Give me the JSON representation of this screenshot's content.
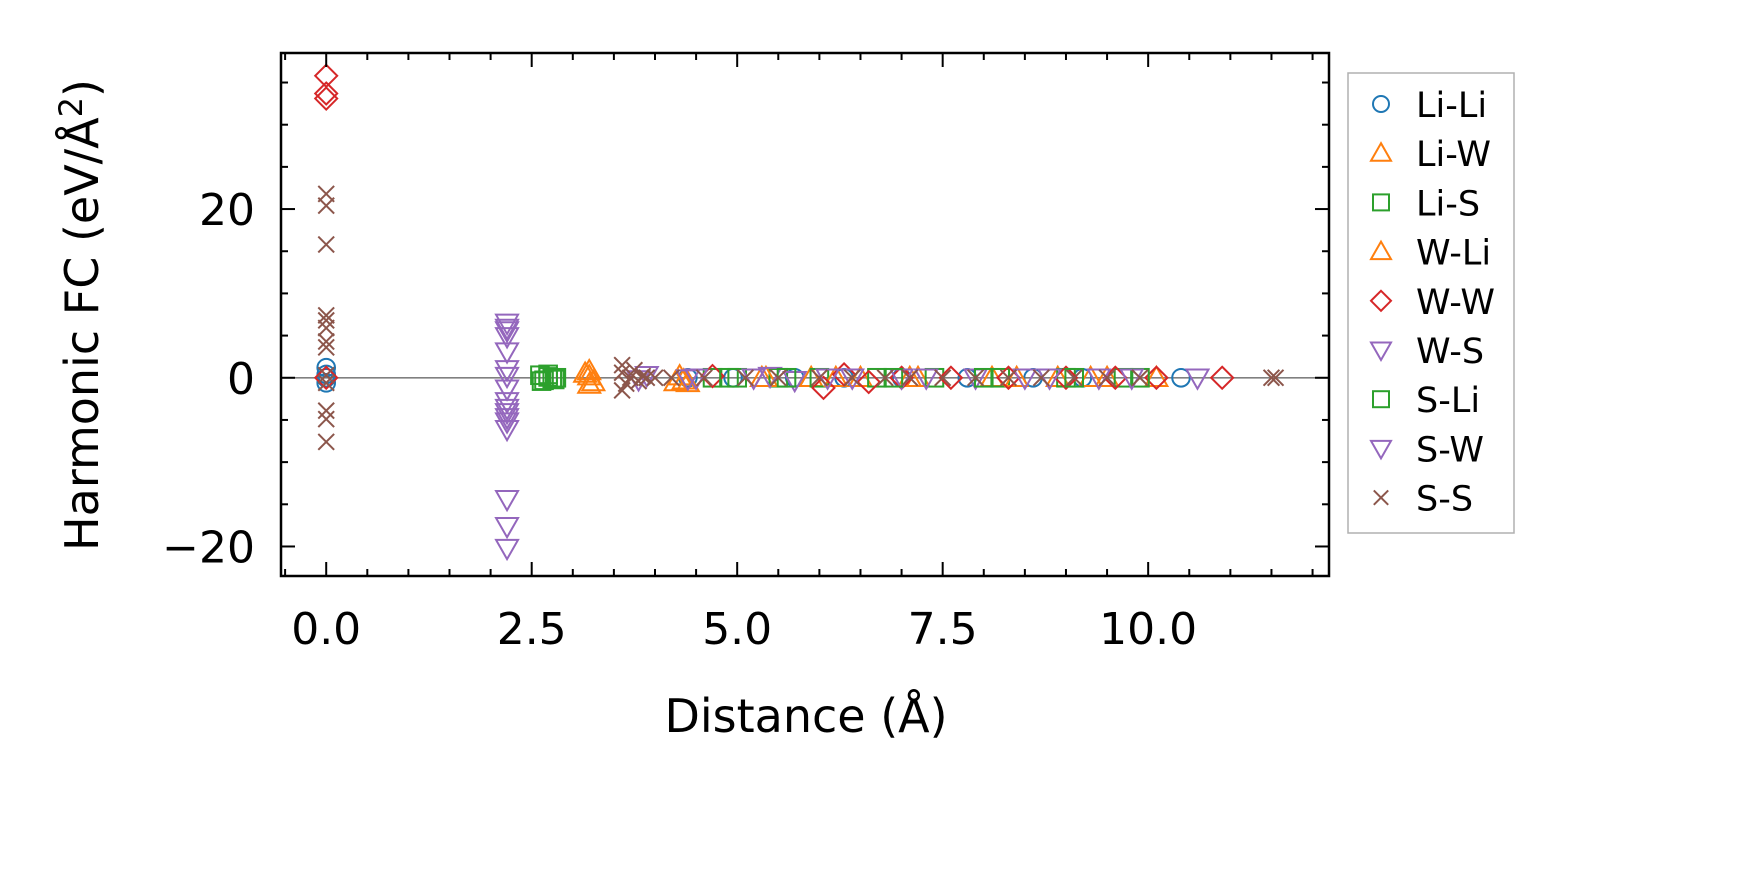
{
  "chart_data": {
    "type": "scatter",
    "title": "",
    "xlabel": "Distance (Å)",
    "ylabel_main": "Harmonic FC (eV/Å",
    "ylabel_sup": "2",
    "ylabel_end": ")",
    "xlim": [
      -0.55,
      12.2
    ],
    "ylim": [
      -23.5,
      38.5
    ],
    "xticks": [
      0,
      2.5,
      5,
      7.5,
      10
    ],
    "xtick_labels": [
      "0.0",
      "2.5",
      "5.0",
      "7.5",
      "10.0"
    ],
    "yticks": [
      -20,
      0,
      20
    ],
    "ytick_labels": [
      "−20",
      "0",
      "20"
    ],
    "hline": 0,
    "legend_position": "outside-right",
    "series": [
      {
        "name": "Li-Li",
        "marker": "circle",
        "color": "#1f77b4",
        "points": [
          [
            0,
            0
          ],
          [
            0,
            1.2
          ],
          [
            0,
            -0.6
          ],
          [
            0,
            0.4
          ],
          [
            4.4,
            0
          ],
          [
            4.95,
            0
          ],
          [
            5.7,
            0
          ],
          [
            6.3,
            0
          ],
          [
            7.0,
            0
          ],
          [
            7.8,
            0
          ],
          [
            8.6,
            0
          ],
          [
            9.2,
            0
          ],
          [
            10.4,
            0
          ]
        ]
      },
      {
        "name": "Li-W",
        "marker": "triangle-up",
        "color": "#ff7f0e",
        "points": [
          [
            3.2,
            0.8
          ],
          [
            3.2,
            -0.8
          ],
          [
            3.2,
            0.2
          ],
          [
            4.25,
            -0.5
          ],
          [
            4.35,
            -0.3
          ],
          [
            4.4,
            -0.6
          ],
          [
            5.3,
            0
          ],
          [
            5.9,
            0
          ],
          [
            6.5,
            0
          ],
          [
            7.2,
            0
          ],
          [
            8.1,
            0
          ],
          [
            8.9,
            0
          ],
          [
            9.5,
            0
          ],
          [
            10.1,
            0
          ]
        ]
      },
      {
        "name": "Li-S",
        "marker": "square",
        "color": "#2ca02c",
        "points": [
          [
            2.6,
            0.3
          ],
          [
            2.65,
            -0.3
          ],
          [
            2.7,
            0.1
          ],
          [
            2.75,
            -0.1
          ],
          [
            2.8,
            0
          ],
          [
            4.7,
            0
          ],
          [
            5.0,
            0
          ],
          [
            5.5,
            0
          ],
          [
            6.0,
            0
          ],
          [
            6.7,
            0
          ],
          [
            7.4,
            0
          ],
          [
            8.2,
            0
          ],
          [
            9.0,
            0
          ],
          [
            9.7,
            0
          ]
        ]
      },
      {
        "name": "W-Li",
        "marker": "triangle-up",
        "color": "#ff7f0e",
        "points": [
          [
            3.15,
            0.5
          ],
          [
            3.25,
            -0.5
          ],
          [
            4.3,
            0.2
          ],
          [
            5.35,
            0
          ],
          [
            6.2,
            0
          ],
          [
            7.1,
            0
          ],
          [
            8.4,
            0
          ],
          [
            9.3,
            0
          ]
        ]
      },
      {
        "name": "W-W",
        "marker": "diamond",
        "color": "#d62728",
        "points": [
          [
            0,
            35.8
          ],
          [
            0,
            33.7
          ],
          [
            0,
            33.1
          ],
          [
            0,
            0
          ],
          [
            4.7,
            0.2
          ],
          [
            6.05,
            -1.2
          ],
          [
            6.3,
            0.4
          ],
          [
            6.6,
            -0.5
          ],
          [
            7.0,
            0
          ],
          [
            7.6,
            0
          ],
          [
            8.3,
            0
          ],
          [
            9.0,
            0
          ],
          [
            9.6,
            0
          ],
          [
            10.1,
            0
          ],
          [
            10.9,
            0
          ]
        ]
      },
      {
        "name": "W-S",
        "marker": "triangle-down",
        "color": "#9467bd",
        "points": [
          [
            2.2,
            6.5
          ],
          [
            2.2,
            5.6
          ],
          [
            2.2,
            4.9
          ],
          [
            2.2,
            3.1
          ],
          [
            2.2,
            0.2
          ],
          [
            2.2,
            -1.3
          ],
          [
            2.2,
            -2.8
          ],
          [
            2.2,
            -4.1
          ],
          [
            2.2,
            -5.2
          ],
          [
            2.2,
            -6.1
          ],
          [
            2.2,
            -14.4
          ],
          [
            2.2,
            -17.6
          ],
          [
            2.2,
            -20.2
          ],
          [
            3.9,
            0.3
          ],
          [
            4.5,
            0
          ],
          [
            5.4,
            0.2
          ],
          [
            5.7,
            -0.3
          ],
          [
            6.4,
            0
          ],
          [
            7.0,
            0
          ],
          [
            7.9,
            0
          ],
          [
            8.8,
            0
          ],
          [
            9.4,
            0
          ],
          [
            10.6,
            0
          ]
        ]
      },
      {
        "name": "S-Li",
        "marker": "square",
        "color": "#2ca02c",
        "points": [
          [
            2.62,
            -0.4
          ],
          [
            2.7,
            0.4
          ],
          [
            2.78,
            -0.2
          ],
          [
            4.9,
            0
          ],
          [
            5.6,
            0
          ],
          [
            6.9,
            0
          ],
          [
            8.0,
            0
          ],
          [
            9.1,
            0
          ],
          [
            9.9,
            0
          ]
        ]
      },
      {
        "name": "S-W",
        "marker": "triangle-down",
        "color": "#9467bd",
        "points": [
          [
            2.2,
            5.9
          ],
          [
            2.2,
            1.0
          ],
          [
            2.2,
            -3.6
          ],
          [
            2.2,
            -4.7
          ],
          [
            3.8,
            -0.2
          ],
          [
            4.4,
            -0.1
          ],
          [
            5.2,
            0
          ],
          [
            6.1,
            0
          ],
          [
            7.3,
            0
          ],
          [
            8.5,
            0
          ],
          [
            9.8,
            0
          ]
        ]
      },
      {
        "name": "S-S",
        "marker": "x",
        "color": "#8c564b",
        "points": [
          [
            0,
            21.8
          ],
          [
            0,
            20.4
          ],
          [
            0,
            15.8
          ],
          [
            0,
            7.4
          ],
          [
            0,
            6.8
          ],
          [
            0,
            5.9
          ],
          [
            0,
            4.3
          ],
          [
            0,
            3.6
          ],
          [
            0,
            0.3
          ],
          [
            0,
            -0.6
          ],
          [
            0,
            -3.9
          ],
          [
            0,
            -4.9
          ],
          [
            0,
            -7.6
          ],
          [
            3.6,
            1.5
          ],
          [
            3.6,
            -1.5
          ],
          [
            3.6,
            0.6
          ],
          [
            3.65,
            -0.7
          ],
          [
            3.7,
            0
          ],
          [
            3.75,
            0.9
          ],
          [
            3.8,
            -0.4
          ],
          [
            3.85,
            0.2
          ],
          [
            3.9,
            0
          ],
          [
            4.0,
            0
          ],
          [
            4.2,
            0
          ],
          [
            4.6,
            0
          ],
          [
            5.1,
            0
          ],
          [
            5.5,
            0
          ],
          [
            6.0,
            0
          ],
          [
            6.4,
            0
          ],
          [
            6.8,
            0
          ],
          [
            7.1,
            0
          ],
          [
            7.5,
            0
          ],
          [
            7.9,
            0
          ],
          [
            8.3,
            0
          ],
          [
            8.7,
            0
          ],
          [
            9.1,
            0
          ],
          [
            9.5,
            0
          ],
          [
            9.9,
            0
          ],
          [
            11.5,
            0
          ],
          [
            11.55,
            0
          ]
        ]
      }
    ]
  }
}
